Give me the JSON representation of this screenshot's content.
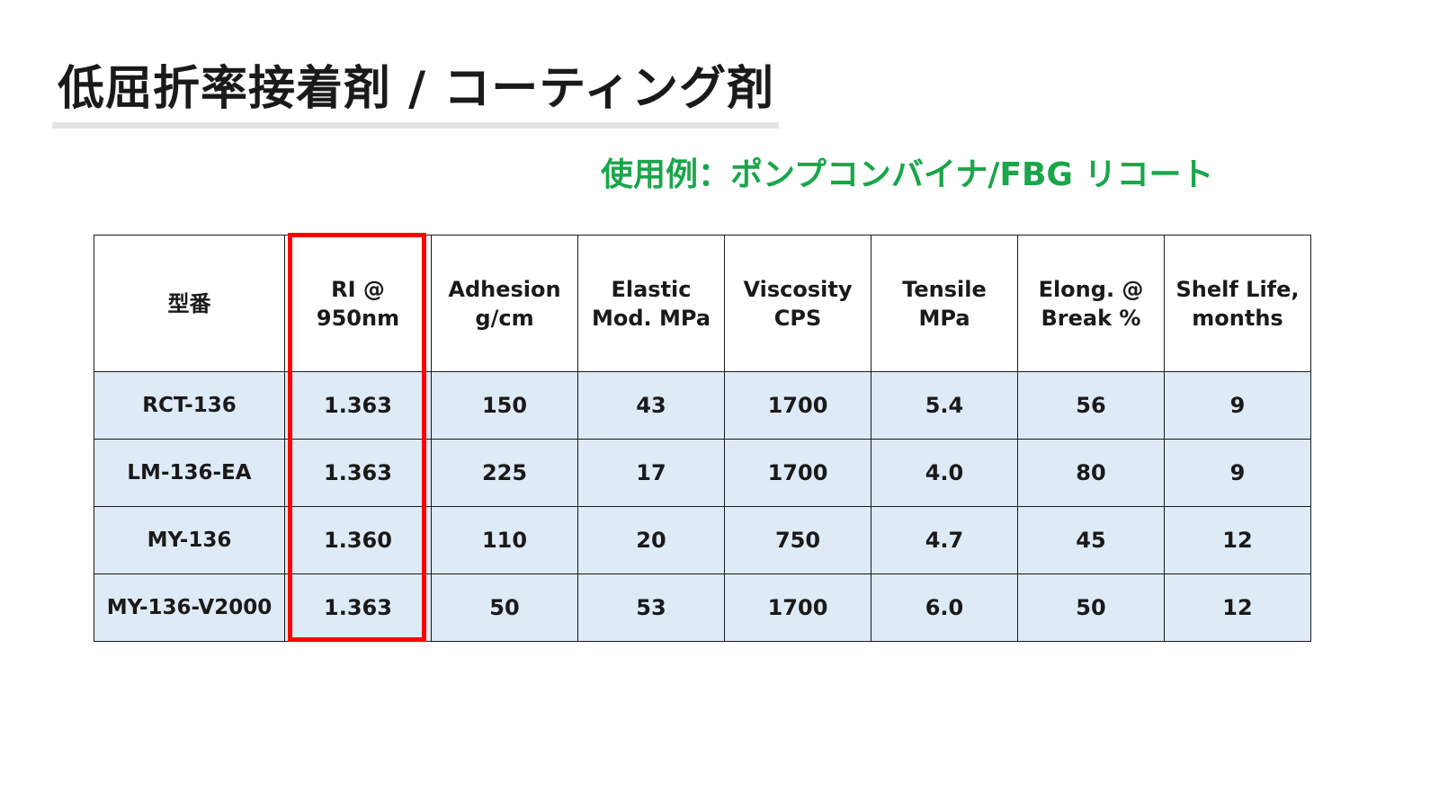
{
  "title": "低屈折率接着剤 / コーティング剤",
  "subtitle": "使用例：ポンプコンバイナ/FBG リコート",
  "table": {
    "headers": [
      [
        "型番"
      ],
      [
        "RI @",
        "950nm"
      ],
      [
        "Adhesion",
        "g/cm"
      ],
      [
        "Elastic",
        "Mod. MPa"
      ],
      [
        "Viscosity",
        "CPS"
      ],
      [
        "Tensile",
        "MPa"
      ],
      [
        "Elong. @",
        "Break %"
      ],
      [
        "Shelf Life,",
        "months"
      ]
    ],
    "rows": [
      [
        "RCT-136",
        "1.363",
        "150",
        "43",
        "1700",
        "5.4",
        "56",
        "9"
      ],
      [
        "LM-136-EA",
        "1.363",
        "225",
        "17",
        "1700",
        "4.0",
        "80",
        "9"
      ],
      [
        "MY-136",
        "1.360",
        "110",
        "20",
        "750",
        "4.7",
        "45",
        "12"
      ],
      [
        "MY-136-V2000",
        "1.363",
        "50",
        "53",
        "1700",
        "6.0",
        "50",
        "12"
      ]
    ],
    "highlighted_column": "RI @ 950nm"
  },
  "colors": {
    "subtitle": "#1aa64a",
    "row_background": "#deeaf6",
    "highlight_border": "#ff0000",
    "title_underline": "#e3e3e3"
  }
}
